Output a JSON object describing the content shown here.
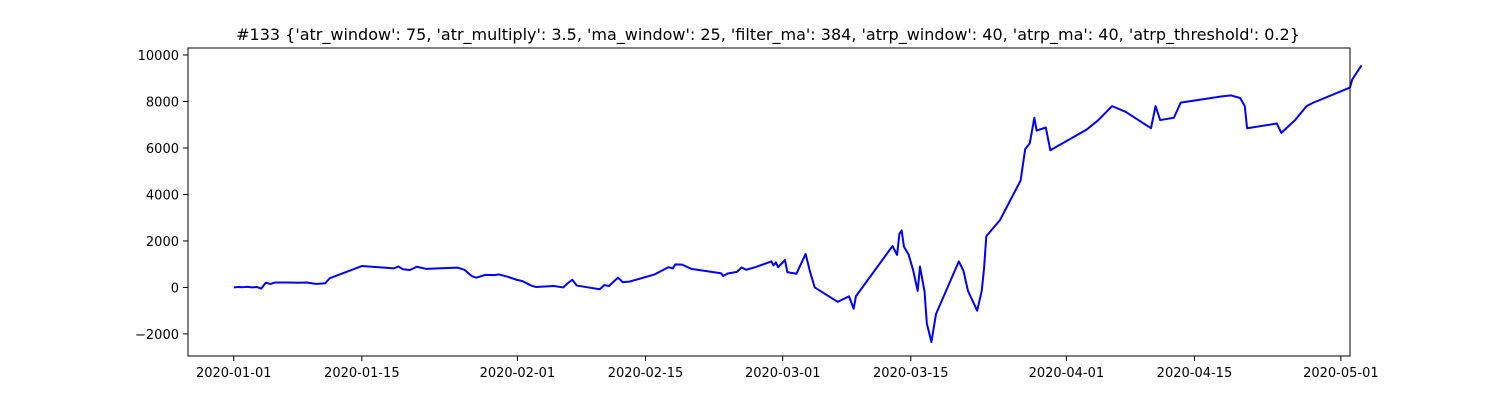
{
  "chart_data": {
    "type": "line",
    "title": "#133 {'atr_window': 75, 'atr_multiply': 3.5, 'ma_window': 25, 'filter_ma': 384, 'atrp_window': 40, 'atrp_ma': 40, 'atrp_threshold': 0.2}",
    "xlabel": "",
    "ylabel": "",
    "xlim": [
      "2019-12-27",
      "2020-05-02"
    ],
    "ylim": [
      -2950,
      10300
    ],
    "grid": false,
    "legend": "none",
    "line_color": "#0000ff",
    "x_ticks": [
      "2020-01-01",
      "2020-01-15",
      "2020-02-01",
      "2020-02-15",
      "2020-03-01",
      "2020-03-15",
      "2020-04-01",
      "2020-04-15",
      "2020-05-01"
    ],
    "y_ticks": [
      {
        "value": -2000,
        "label": "−2000"
      },
      {
        "value": 0,
        "label": "0"
      },
      {
        "value": 2000,
        "label": "2000"
      },
      {
        "value": 4000,
        "label": "4000"
      },
      {
        "value": 6000,
        "label": "6000"
      },
      {
        "value": 8000,
        "label": "8000"
      },
      {
        "value": 10000,
        "label": "10000"
      }
    ],
    "series": [
      {
        "values": [
          {
            "x": "2020-01-01T00:00",
            "y": 0
          },
          {
            "x": "2020-01-01T12:00",
            "y": 20
          },
          {
            "x": "2020-01-02T00:00",
            "y": 10
          },
          {
            "x": "2020-01-02T12:00",
            "y": 30
          },
          {
            "x": "2020-01-03T00:00",
            "y": 0
          },
          {
            "x": "2020-01-03T12:00",
            "y": 20
          },
          {
            "x": "2020-01-04T00:00",
            "y": -50
          },
          {
            "x": "2020-01-04T12:00",
            "y": 200
          },
          {
            "x": "2020-01-05T00:00",
            "y": 150
          },
          {
            "x": "2020-01-05T12:00",
            "y": 210
          },
          {
            "x": "2020-01-06T00:00",
            "y": 210
          },
          {
            "x": "2020-01-07T00:00",
            "y": 210
          },
          {
            "x": "2020-01-08T00:00",
            "y": 200
          },
          {
            "x": "2020-01-09T00:00",
            "y": 210
          },
          {
            "x": "2020-01-10T00:00",
            "y": 150
          },
          {
            "x": "2020-01-11T00:00",
            "y": 180
          },
          {
            "x": "2020-01-11T12:00",
            "y": 400
          },
          {
            "x": "2020-01-15T00:00",
            "y": 920
          },
          {
            "x": "2020-01-18T12:00",
            "y": 820
          },
          {
            "x": "2020-01-19T00:00",
            "y": 900
          },
          {
            "x": "2020-01-19T12:00",
            "y": 780
          },
          {
            "x": "2020-01-20T06:00",
            "y": 750
          },
          {
            "x": "2020-01-21T00:00",
            "y": 890
          },
          {
            "x": "2020-01-22T00:00",
            "y": 800
          },
          {
            "x": "2020-01-25T12:00",
            "y": 850
          },
          {
            "x": "2020-01-26T06:00",
            "y": 750
          },
          {
            "x": "2020-01-27T00:00",
            "y": 490
          },
          {
            "x": "2020-01-27T12:00",
            "y": 420
          },
          {
            "x": "2020-01-28T12:00",
            "y": 540
          },
          {
            "x": "2020-01-29T12:00",
            "y": 530
          },
          {
            "x": "2020-01-30T00:00",
            "y": 560
          },
          {
            "x": "2020-01-31T00:00",
            "y": 450
          },
          {
            "x": "2020-02-01T00:00",
            "y": 320
          },
          {
            "x": "2020-02-01T12:00",
            "y": 280
          },
          {
            "x": "2020-02-02T12:00",
            "y": 80
          },
          {
            "x": "2020-02-03T00:00",
            "y": 20
          },
          {
            "x": "2020-02-05T00:00",
            "y": 60
          },
          {
            "x": "2020-02-06T00:00",
            "y": 0
          },
          {
            "x": "2020-02-06T12:00",
            "y": 180
          },
          {
            "x": "2020-02-07T00:00",
            "y": 330
          },
          {
            "x": "2020-02-07T12:00",
            "y": 80
          },
          {
            "x": "2020-02-10T00:00",
            "y": -80
          },
          {
            "x": "2020-02-10T12:00",
            "y": 100
          },
          {
            "x": "2020-02-11T00:00",
            "y": 60
          },
          {
            "x": "2020-02-12T00:00",
            "y": 420
          },
          {
            "x": "2020-02-12T12:00",
            "y": 230
          },
          {
            "x": "2020-02-13T06:00",
            "y": 250
          },
          {
            "x": "2020-02-16T00:00",
            "y": 560
          },
          {
            "x": "2020-02-17T12:00",
            "y": 870
          },
          {
            "x": "2020-02-18T00:00",
            "y": 820
          },
          {
            "x": "2020-02-18T06:00",
            "y": 990
          },
          {
            "x": "2020-02-19T00:00",
            "y": 980
          },
          {
            "x": "2020-02-20T00:00",
            "y": 800
          },
          {
            "x": "2020-02-23T06:00",
            "y": 610
          },
          {
            "x": "2020-02-23T12:00",
            "y": 490
          },
          {
            "x": "2020-02-24T00:00",
            "y": 600
          },
          {
            "x": "2020-02-25T00:00",
            "y": 670
          },
          {
            "x": "2020-02-25T12:00",
            "y": 860
          },
          {
            "x": "2020-02-26T00:00",
            "y": 760
          },
          {
            "x": "2020-02-27T00:00",
            "y": 870
          },
          {
            "x": "2020-02-28T18:00",
            "y": 1120
          },
          {
            "x": "2020-02-29T00:00",
            "y": 950
          },
          {
            "x": "2020-02-29T06:00",
            "y": 1080
          },
          {
            "x": "2020-02-29T12:00",
            "y": 870
          },
          {
            "x": "2020-03-01T06:00",
            "y": 1180
          },
          {
            "x": "2020-03-01T12:00",
            "y": 660
          },
          {
            "x": "2020-03-02T12:00",
            "y": 590
          },
          {
            "x": "2020-03-03T12:00",
            "y": 1440
          },
          {
            "x": "2020-03-04T00:00",
            "y": 650
          },
          {
            "x": "2020-03-04T12:00",
            "y": 0
          },
          {
            "x": "2020-03-07T00:00",
            "y": -620
          },
          {
            "x": "2020-03-08T06:00",
            "y": -380
          },
          {
            "x": "2020-03-08T18:00",
            "y": -920
          },
          {
            "x": "2020-03-09T00:00",
            "y": -380
          },
          {
            "x": "2020-03-13T00:00",
            "y": 1780
          },
          {
            "x": "2020-03-13T12:00",
            "y": 1400
          },
          {
            "x": "2020-03-13T18:00",
            "y": 2300
          },
          {
            "x": "2020-03-14T00:00",
            "y": 2450
          },
          {
            "x": "2020-03-14T06:00",
            "y": 1750
          },
          {
            "x": "2020-03-14T18:00",
            "y": 1420
          },
          {
            "x": "2020-03-15T06:00",
            "y": 750
          },
          {
            "x": "2020-03-15T18:00",
            "y": -150
          },
          {
            "x": "2020-03-16T00:00",
            "y": 900
          },
          {
            "x": "2020-03-16T12:00",
            "y": -180
          },
          {
            "x": "2020-03-16T18:00",
            "y": -1550
          },
          {
            "x": "2020-03-17T06:00",
            "y": -2350
          },
          {
            "x": "2020-03-17T18:00",
            "y": -1150
          },
          {
            "x": "2020-03-20T06:00",
            "y": 1120
          },
          {
            "x": "2020-03-20T18:00",
            "y": 720
          },
          {
            "x": "2020-03-21T06:00",
            "y": -150
          },
          {
            "x": "2020-03-22T06:00",
            "y": -1000
          },
          {
            "x": "2020-03-22T18:00",
            "y": -150
          },
          {
            "x": "2020-03-23T00:00",
            "y": 800
          },
          {
            "x": "2020-03-23T06:00",
            "y": 2200
          },
          {
            "x": "2020-03-24T18:00",
            "y": 2900
          },
          {
            "x": "2020-03-27T00:00",
            "y": 4600
          },
          {
            "x": "2020-03-27T12:00",
            "y": 5950
          },
          {
            "x": "2020-03-28T00:00",
            "y": 6200
          },
          {
            "x": "2020-03-28T12:00",
            "y": 7300
          },
          {
            "x": "2020-03-28T18:00",
            "y": 6750
          },
          {
            "x": "2020-03-29T18:00",
            "y": 6880
          },
          {
            "x": "2020-03-30T06:00",
            "y": 5900
          },
          {
            "x": "2020-04-03T06:00",
            "y": 6800
          },
          {
            "x": "2020-04-04T12:00",
            "y": 7200
          },
          {
            "x": "2020-04-06T00:00",
            "y": 7800
          },
          {
            "x": "2020-04-07T12:00",
            "y": 7550
          },
          {
            "x": "2020-04-10T06:00",
            "y": 6850
          },
          {
            "x": "2020-04-10T18:00",
            "y": 7800
          },
          {
            "x": "2020-04-11T06:00",
            "y": 7200
          },
          {
            "x": "2020-04-12T18:00",
            "y": 7300
          },
          {
            "x": "2020-04-13T12:00",
            "y": 7950
          },
          {
            "x": "2020-04-18T00:00",
            "y": 8220
          },
          {
            "x": "2020-04-19T00:00",
            "y": 8260
          },
          {
            "x": "2020-04-20T00:00",
            "y": 8150
          },
          {
            "x": "2020-04-20T12:00",
            "y": 7800
          },
          {
            "x": "2020-04-20T18:00",
            "y": 6850
          },
          {
            "x": "2020-04-24T00:00",
            "y": 7050
          },
          {
            "x": "2020-04-24T12:00",
            "y": 6650
          },
          {
            "x": "2020-04-26T00:00",
            "y": 7200
          },
          {
            "x": "2020-04-27T06:00",
            "y": 7800
          },
          {
            "x": "2020-04-28T00:00",
            "y": 7950
          },
          {
            "x": "2020-05-02T00:00",
            "y": 8600
          },
          {
            "x": "2020-05-02T06:00",
            "y": 8950
          },
          {
            "x": "2020-05-03T06:00",
            "y": 9550
          }
        ]
      }
    ]
  }
}
